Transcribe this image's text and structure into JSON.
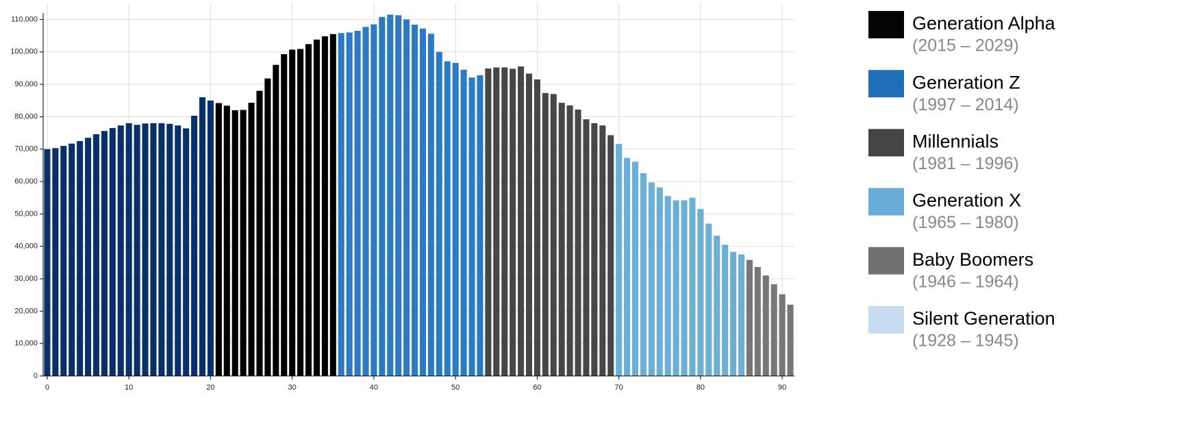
{
  "chart_data": {
    "type": "bar",
    "x": [
      0,
      1,
      2,
      3,
      4,
      5,
      6,
      7,
      8,
      9,
      10,
      11,
      12,
      13,
      14,
      15,
      16,
      17,
      18,
      19,
      20,
      21,
      22,
      23,
      24,
      25,
      26,
      27,
      28,
      29,
      30,
      31,
      32,
      33,
      34,
      35,
      36,
      37,
      38,
      39,
      40,
      41,
      42,
      43,
      44,
      45,
      46,
      47,
      48,
      49,
      50,
      51,
      52,
      53,
      54,
      55,
      56,
      57,
      58,
      59,
      60,
      61,
      62,
      63,
      64,
      65,
      66,
      67,
      68,
      69,
      70,
      71,
      72,
      73,
      74,
      75,
      76,
      77,
      78,
      79,
      80,
      81,
      82,
      83,
      84,
      85,
      86,
      87,
      88,
      89,
      90,
      91
    ],
    "values": [
      70000,
      70300,
      71000,
      71700,
      72500,
      73500,
      74600,
      75600,
      76500,
      77300,
      78000,
      77500,
      77900,
      78000,
      78000,
      77800,
      77300,
      76400,
      80300,
      86000,
      85000,
      84200,
      83400,
      82000,
      82100,
      84300,
      88000,
      91800,
      96000,
      99300,
      100700,
      100900,
      102400,
      103800,
      104800,
      105500,
      105800,
      106000,
      106500,
      107700,
      108500,
      110800,
      111500,
      111300,
      110000,
      108400,
      107200,
      105600,
      100000,
      97100,
      96600,
      94500,
      92100,
      92800,
      94900,
      95200,
      95200,
      94800,
      95500,
      93300,
      91500,
      87300,
      87000,
      84300,
      83500,
      82200,
      79200,
      78000,
      77300,
      74300,
      71600,
      67300,
      66100,
      62600,
      59700,
      58200,
      55500,
      54200,
      54200,
      55000,
      51500,
      47000,
      43300,
      40500,
      38300,
      37500,
      35800,
      33600,
      31000,
      28300,
      25200,
      22000
    ],
    "colors": [
      "#08306b",
      "#08306b",
      "#08306b",
      "#08306b",
      "#08306b",
      "#08306b",
      "#08306b",
      "#08306b",
      "#08306b",
      "#08306b",
      "#08306b",
      "#08306b",
      "#08306b",
      "#08306b",
      "#08306b",
      "#08306b",
      "#08306b",
      "#08306b",
      "#08306b",
      "#08306b",
      "#08306b",
      "#000000",
      "#000000",
      "#000000",
      "#000000",
      "#000000",
      "#000000",
      "#000000",
      "#000000",
      "#000000",
      "#000000",
      "#000000",
      "#000000",
      "#000000",
      "#000000",
      "#000000",
      "#2b7bc4",
      "#2b7bc4",
      "#2b7bc4",
      "#2b7bc4",
      "#2b7bc4",
      "#2b7bc4",
      "#2b7bc4",
      "#2b7bc4",
      "#2b7bc4",
      "#2b7bc4",
      "#2b7bc4",
      "#2b7bc4",
      "#2b7bc4",
      "#2b7bc4",
      "#2b7bc4",
      "#2b7bc4",
      "#2b7bc4",
      "#2b7bc4",
      "#474747",
      "#474747",
      "#474747",
      "#474747",
      "#474747",
      "#474747",
      "#474747",
      "#474747",
      "#474747",
      "#474747",
      "#474747",
      "#474747",
      "#474747",
      "#474747",
      "#474747",
      "#474747",
      "#6baed6",
      "#6baed6",
      "#6baed6",
      "#6baed6",
      "#6baed6",
      "#6baed6",
      "#6baed6",
      "#6baed6",
      "#6baed6",
      "#6baed6",
      "#6baed6",
      "#6baed6",
      "#6baed6",
      "#6baed6",
      "#6baed6",
      "#6baed6",
      "#777777",
      "#777777",
      "#777777",
      "#777777",
      "#777777",
      "#777777"
    ],
    "xlim": [
      -0.5,
      91.5
    ],
    "xticks": [
      0,
      10,
      20,
      30,
      40,
      50,
      60,
      70,
      80,
      90
    ],
    "ylim": [
      0,
      112000
    ],
    "yticks": [
      0,
      {
        "value": 10000,
        "label": "10,000"
      },
      {
        "value": 20000,
        "label": "20,000"
      },
      {
        "value": 30000,
        "label": "30,000"
      },
      {
        "value": 40000,
        "label": "40,000"
      },
      {
        "value": 50000,
        "label": "50,000"
      },
      {
        "value": 60000,
        "label": "60,000"
      },
      {
        "value": 70000,
        "label": "70,000"
      },
      {
        "value": 80000,
        "label": "80,000"
      },
      {
        "value": 90000,
        "label": "90,000"
      },
      {
        "value": 100000,
        "label": "100,000"
      },
      {
        "value": 110000,
        "label": "110,000"
      }
    ],
    "grid": true,
    "legend": [
      {
        "name": "Generation Alpha",
        "years": "(2015 – 2029)",
        "color": "#050505"
      },
      {
        "name": "Generation Z",
        "years": "(1997 – 2014)",
        "color": "#1f6eb8"
      },
      {
        "name": "Millennials",
        "years": "(1981 – 1996)",
        "color": "#444444"
      },
      {
        "name": "Generation X",
        "years": "(1965 – 1980)",
        "color": "#68acd8"
      },
      {
        "name": "Baby Boomers",
        "years": "(1946 – 1964)",
        "color": "#707070"
      },
      {
        "name": "Silent Generation",
        "years": "(1928 – 1945)",
        "color": "#c6dbef"
      }
    ]
  }
}
